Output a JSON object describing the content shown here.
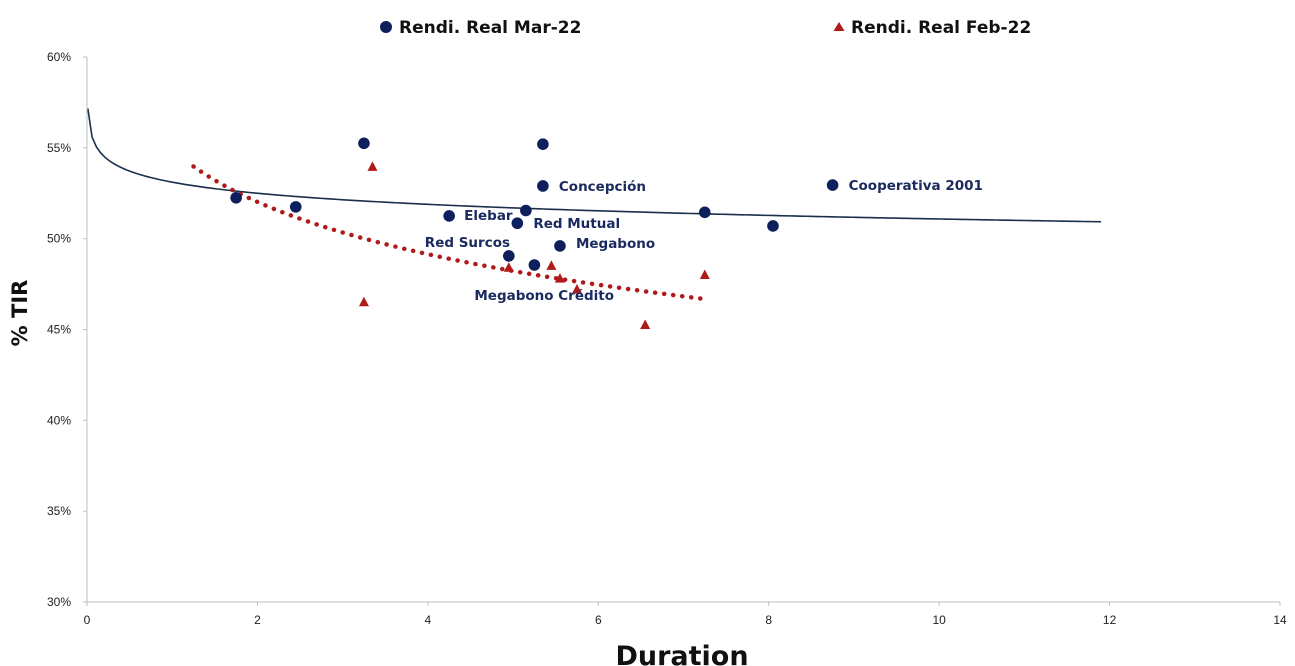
{
  "chart_data": {
    "type": "scatter",
    "title": "",
    "xlabel": "Duration",
    "ylabel": "% TIR",
    "xlim": [
      0,
      14
    ],
    "ylim": [
      0.3,
      0.6
    ],
    "x_ticks": [
      {
        "value": 0,
        "label": "0"
      },
      {
        "value": 2,
        "label": "2"
      },
      {
        "value": 4,
        "label": "4"
      },
      {
        "value": 6,
        "label": "6"
      },
      {
        "value": 8,
        "label": "8"
      },
      {
        "value": 10,
        "label": "10"
      },
      {
        "value": 12,
        "label": "12"
      },
      {
        "value": 14,
        "label": "14"
      }
    ],
    "y_ticks": [
      {
        "value": 0.3,
        "label": "30%"
      },
      {
        "value": 0.35,
        "label": "35%"
      },
      {
        "value": 0.4,
        "label": "40%"
      },
      {
        "value": 0.45,
        "label": "45%"
      },
      {
        "value": 0.5,
        "label": "50%"
      },
      {
        "value": 0.55,
        "label": "55%"
      },
      {
        "value": 0.6,
        "label": "60%"
      }
    ],
    "grid": false,
    "legend_position": "top",
    "series": [
      {
        "name": "Rendi. Real Mar-22",
        "marker": "circle",
        "color": "#0d1f5c",
        "points": [
          {
            "x": 1.75,
            "y": 0.5225
          },
          {
            "x": 2.45,
            "y": 0.5175
          },
          {
            "x": 3.25,
            "y": 0.5525
          },
          {
            "x": 4.25,
            "y": 0.5125
          },
          {
            "x": 4.95,
            "y": 0.4905
          },
          {
            "x": 5.05,
            "y": 0.5085
          },
          {
            "x": 5.15,
            "y": 0.5155
          },
          {
            "x": 5.25,
            "y": 0.4855
          },
          {
            "x": 5.35,
            "y": 0.552
          },
          {
            "x": 5.35,
            "y": 0.529
          },
          {
            "x": 5.55,
            "y": 0.496
          },
          {
            "x": 7.25,
            "y": 0.5145
          },
          {
            "x": 8.05,
            "y": 0.507
          },
          {
            "x": 8.75,
            "y": 0.5295
          }
        ]
      },
      {
        "name": "Rendi. Real Feb-22",
        "marker": "triangle",
        "color": "#b01a1a",
        "points": [
          {
            "x": 3.25,
            "y": 0.465
          },
          {
            "x": 3.35,
            "y": 0.5395
          },
          {
            "x": 4.95,
            "y": 0.484
          },
          {
            "x": 5.45,
            "y": 0.485
          },
          {
            "x": 5.55,
            "y": 0.478
          },
          {
            "x": 5.75,
            "y": 0.472
          },
          {
            "x": 6.55,
            "y": 0.4525
          },
          {
            "x": 7.25,
            "y": 0.48
          }
        ]
      }
    ],
    "trendlines": [
      {
        "series": "Rendi. Real Mar-22",
        "type": "logarithmic",
        "a": 0.5311,
        "b": -0.0088,
        "x_range": [
          0.01,
          11.9
        ],
        "color": "#1a2f4a",
        "style": "solid"
      },
      {
        "series": "Rendi. Real Feb-22",
        "type": "logarithmic",
        "a": 0.549,
        "b": -0.0415,
        "x_range": [
          1.25,
          7.25
        ],
        "color": "#b01a1a",
        "style": "dotted"
      }
    ],
    "annotations": [
      {
        "text": "Concepción",
        "x": 5.35,
        "y": 0.529,
        "dx": 16,
        "dy": 5
      },
      {
        "text": "Cooperativa 2001",
        "x": 8.75,
        "y": 0.5295,
        "dx": 16,
        "dy": 5
      },
      {
        "text": "Elebar",
        "x": 4.25,
        "y": 0.5125,
        "dx": 15,
        "dy": 4
      },
      {
        "text": "Red Mutual",
        "x": 5.05,
        "y": 0.5085,
        "dx": 16,
        "dy": 5
      },
      {
        "text": "Red Surcos",
        "x": 4.95,
        "y": 0.4905,
        "dx": -84,
        "dy": -9
      },
      {
        "text": "Megabono",
        "x": 5.55,
        "y": 0.496,
        "dx": 16,
        "dy": 2
      },
      {
        "text": "Megabono Crédito",
        "x": 5.25,
        "y": 0.4855,
        "dx": -60,
        "dy": 35
      }
    ]
  }
}
